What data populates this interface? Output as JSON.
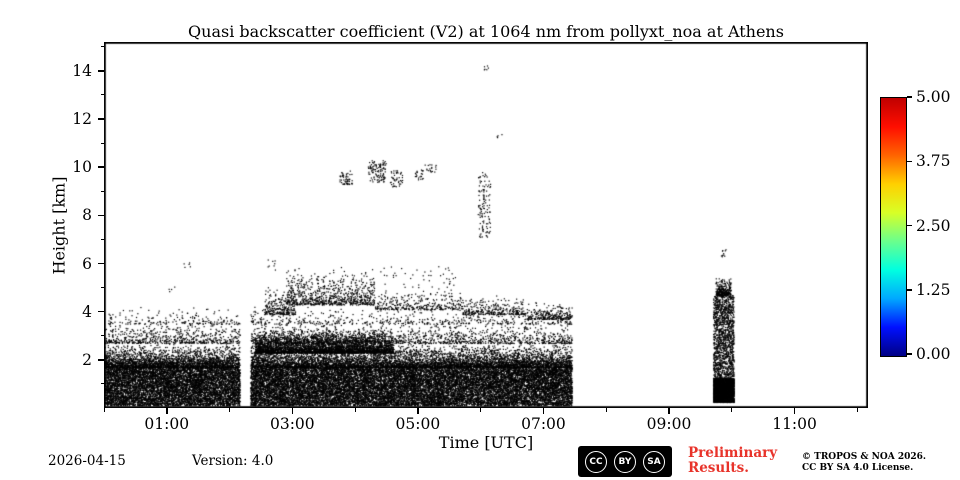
{
  "colors": {
    "point_black": "#000000",
    "preliminary_red": "#e8332a",
    "frame_black": "#000000"
  },
  "colorbar": {
    "range": [
      0,
      5
    ],
    "tick_labels": [
      {
        "label": "5.00",
        "value": 5.0
      },
      {
        "label": "3.75",
        "value": 3.75
      },
      {
        "label": "2.50",
        "value": 2.5
      },
      {
        "label": "1.25",
        "value": 1.25
      },
      {
        "label": "0.00",
        "value": 0.0
      }
    ],
    "gradient_bottom_to_top": [
      "#000085",
      "#0010ff",
      "#00a8ff",
      "#00ffe0",
      "#6aff8d",
      "#d8ff26",
      "#ffd000",
      "#ff6400",
      "#ff0e00",
      "#c00000"
    ]
  },
  "footer": {
    "date": "2026-04-15",
    "version": "Version: 4.0",
    "cc_labels": [
      "CC",
      "BY",
      "SA"
    ],
    "preliminary_line1": "Preliminary",
    "preliminary_line2": "Results.",
    "copyright_line1": "© TROPOS & NOA 2026.",
    "copyright_line2": "CC BY SA 4.0 License."
  },
  "chart_data": {
    "type": "scatter",
    "title": "Quasi backscatter coefficient (V2) at 1064 nm from pollyxt_noa at Athens",
    "xlabel": "Time [UTC]",
    "ylabel": "Height [km]",
    "x_range_hours": [
      0,
      12.17
    ],
    "y_range_km": [
      0,
      15.2
    ],
    "x_ticks": [
      {
        "label": "01:00",
        "hour": 1
      },
      {
        "label": "03:00",
        "hour": 3
      },
      {
        "label": "05:00",
        "hour": 5
      },
      {
        "label": "07:00",
        "hour": 7
      },
      {
        "label": "09:00",
        "hour": 9
      },
      {
        "label": "11:00",
        "hour": 11
      }
    ],
    "x_minor_ticks_hours": [
      0,
      2,
      4,
      6,
      8,
      10,
      12
    ],
    "y_ticks_km": [
      2,
      4,
      6,
      8,
      10,
      12,
      14
    ],
    "y_minor_ticks_km": [
      1,
      3,
      5,
      7,
      9,
      11,
      13,
      15
    ],
    "point_color": "#000000",
    "legend": "colorbar right, 0.00 (blue) to 5.00 (red), jet colormap",
    "grid": false,
    "data_gaps_hours": [
      [
        2.16,
        2.33
      ]
    ],
    "point_regions": [
      {
        "t": [
          0.0,
          7.45
        ],
        "h": [
          0.12,
          1.7
        ],
        "n": 26000,
        "mode": "uniform"
      },
      {
        "t": [
          0.0,
          7.45
        ],
        "h": [
          1.7,
          2.7
        ],
        "n": 9000,
        "mode": "fade"
      },
      {
        "t": [
          2.4,
          4.6
        ],
        "h": [
          2.3,
          3.3
        ],
        "n": 3500,
        "mode": "fade"
      },
      {
        "t": [
          0.0,
          7.45
        ],
        "h": [
          2.7,
          3.7
        ],
        "n": 2200,
        "mode": "fade"
      },
      {
        "t": [
          0.0,
          7.45
        ],
        "h": [
          3.5,
          4.3
        ],
        "n": 650,
        "mode": "fade"
      },
      {
        "t": [
          2.9,
          4.3
        ],
        "h": [
          4.3,
          5.9
        ],
        "n": 800,
        "mode": "fade"
      },
      {
        "t": [
          2.55,
          3.05
        ],
        "h": [
          3.9,
          5.1
        ],
        "n": 260,
        "mode": "fade"
      },
      {
        "t": [
          4.3,
          5.7
        ],
        "h": [
          4.1,
          5.0
        ],
        "n": 330,
        "mode": "fade"
      },
      {
        "t": [
          5.7,
          6.7
        ],
        "h": [
          3.9,
          4.7
        ],
        "n": 300,
        "mode": "fade"
      },
      {
        "t": [
          6.7,
          7.45
        ],
        "h": [
          3.7,
          4.4
        ],
        "n": 260,
        "mode": "fade"
      },
      {
        "t": [
          4.4,
          5.6
        ],
        "h": [
          5.0,
          5.9
        ],
        "n": 45,
        "mode": "uniform"
      },
      {
        "t": [
          3.75,
          3.95
        ],
        "h": [
          9.3,
          9.9
        ],
        "n": 55,
        "mode": "uniform"
      },
      {
        "t": [
          4.2,
          4.5
        ],
        "h": [
          9.4,
          10.3
        ],
        "n": 110,
        "mode": "uniform"
      },
      {
        "t": [
          4.55,
          4.75
        ],
        "h": [
          9.2,
          9.9
        ],
        "n": 45,
        "mode": "uniform"
      },
      {
        "t": [
          4.95,
          5.08
        ],
        "h": [
          9.5,
          9.95
        ],
        "n": 22,
        "mode": "uniform"
      },
      {
        "t": [
          5.1,
          5.3
        ],
        "h": [
          9.8,
          10.15
        ],
        "n": 18,
        "mode": "uniform"
      },
      {
        "t": [
          5.95,
          6.15
        ],
        "h": [
          7.1,
          9.8
        ],
        "n": 120,
        "mode": "uniform"
      },
      {
        "t": [
          6.0,
          6.12
        ],
        "h": [
          14.05,
          14.3
        ],
        "n": 6,
        "mode": "uniform"
      },
      {
        "t": [
          6.25,
          6.35
        ],
        "h": [
          11.15,
          11.4
        ],
        "n": 4,
        "mode": "uniform"
      },
      {
        "t": [
          1.25,
          1.38
        ],
        "h": [
          5.75,
          6.05
        ],
        "n": 5,
        "mode": "uniform"
      },
      {
        "t": [
          1.0,
          1.12
        ],
        "h": [
          4.85,
          5.1
        ],
        "n": 4,
        "mode": "uniform"
      },
      {
        "t": [
          2.55,
          2.78
        ],
        "h": [
          5.75,
          6.2
        ],
        "n": 8,
        "mode": "uniform"
      },
      {
        "t": [
          9.7,
          10.03
        ],
        "h": [
          0.25,
          1.25
        ],
        "n": 2800,
        "mode": "uniform"
      },
      {
        "t": [
          9.7,
          10.03
        ],
        "h": [
          1.25,
          4.7
        ],
        "n": 1400,
        "mode": "uniform"
      },
      {
        "t": [
          9.74,
          9.98
        ],
        "h": [
          4.7,
          5.5
        ],
        "n": 300,
        "mode": "fade"
      },
      {
        "t": [
          9.82,
          9.9
        ],
        "h": [
          6.3,
          6.6
        ],
        "n": 10,
        "mode": "uniform"
      }
    ]
  }
}
